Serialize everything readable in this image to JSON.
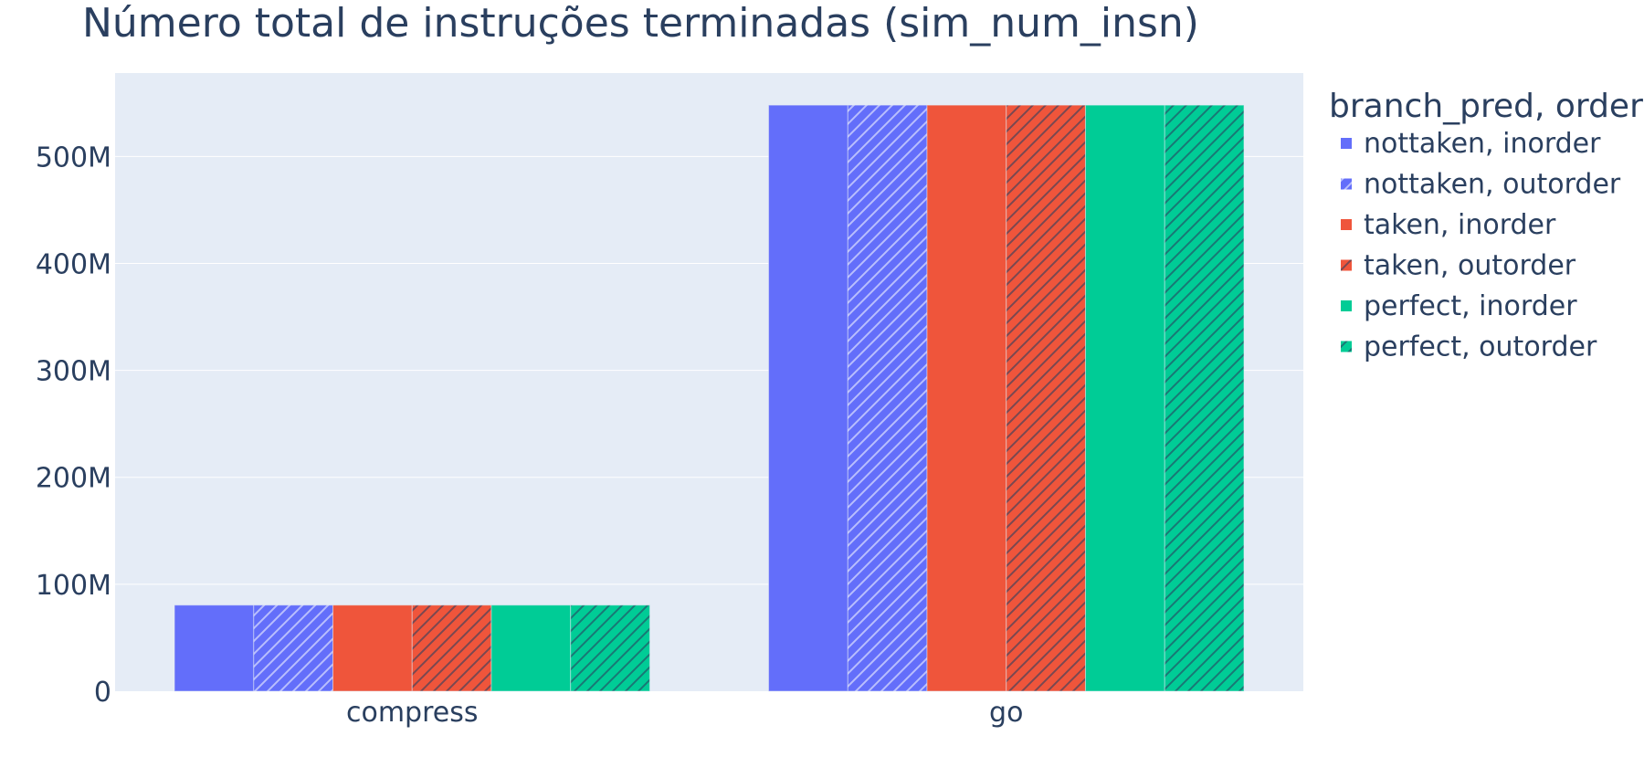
{
  "chart_data": {
    "type": "bar",
    "title": "Número total de instruções terminadas (sim_num_insn)",
    "xlabel": "",
    "ylabel": "",
    "categories": [
      "compress",
      "go"
    ],
    "ylim": [
      0,
      578000000
    ],
    "yticks": [
      0,
      100000000,
      200000000,
      300000000,
      400000000,
      500000000
    ],
    "ytick_labels": [
      "0",
      "100M",
      "200M",
      "300M",
      "400M",
      "500M"
    ],
    "grid": true,
    "legend": {
      "title": "branch_pred, order",
      "placement": "top-right-outside"
    },
    "series": [
      {
        "name": "nottaken, inorder",
        "color": "#636efa",
        "pattern": "solid",
        "values": [
          80500000,
          548000000
        ]
      },
      {
        "name": "nottaken, outorder",
        "color": "#636efa",
        "pattern": "hatch",
        "values": [
          80500000,
          548000000
        ]
      },
      {
        "name": "taken, inorder",
        "color": "#ef553b",
        "pattern": "solid",
        "values": [
          80500000,
          548000000
        ]
      },
      {
        "name": "taken, outorder",
        "color": "#ef553b",
        "pattern": "hatch",
        "values": [
          80500000,
          548000000
        ]
      },
      {
        "name": "perfect, inorder",
        "color": "#00cc96",
        "pattern": "solid",
        "values": [
          80500000,
          548000000
        ]
      },
      {
        "name": "perfect, outorder",
        "color": "#00cc96",
        "pattern": "hatch",
        "values": [
          80500000,
          548000000
        ]
      }
    ],
    "plot_bg": "#e5ecf6",
    "grid_color": "#ffffff",
    "text_color": "#2a3f5f"
  }
}
